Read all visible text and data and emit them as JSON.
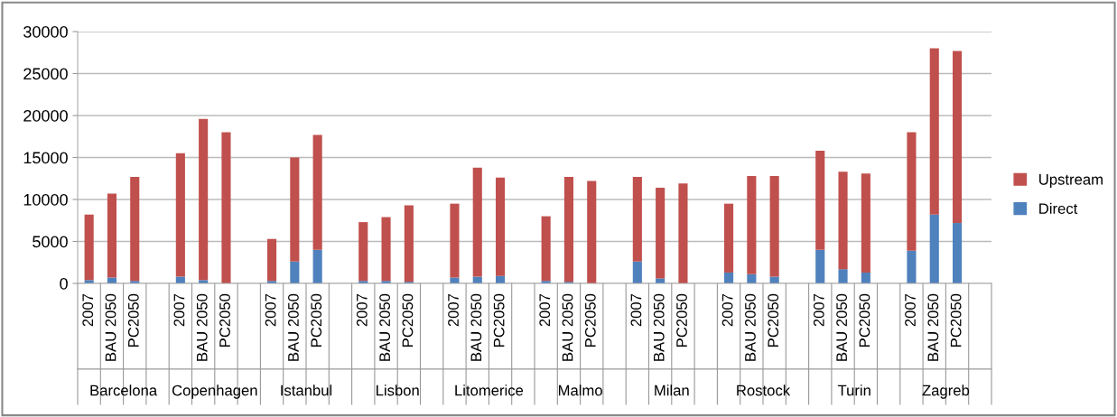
{
  "chart_data": {
    "type": "bar",
    "stacked": true,
    "categories": [
      "2007",
      "BAU 2050",
      "PC2050",
      null,
      "2007",
      "BAU 2050",
      "PC2050",
      null,
      "2007",
      "BAU 2050",
      "PC2050",
      null,
      "2007",
      "BAU 2050",
      "PC2050",
      null,
      "2007",
      "BAU 2050",
      "PC2050",
      null,
      "2007",
      "BAU 2050",
      "PC2050",
      null,
      "2007",
      "BAU 2050",
      "PC2050",
      null,
      "2007",
      "BAU 2050",
      "PC2050",
      null,
      "2007",
      "BAU 2050",
      "PC2050",
      null,
      "2007",
      "BAU 2050",
      "PC2050",
      null
    ],
    "series": [
      {
        "name": "Direct",
        "color": "#4f81bd",
        "values": [
          400,
          700,
          300,
          null,
          800,
          400,
          null,
          null,
          300,
          2600,
          4000,
          null,
          300,
          300,
          200,
          null,
          700,
          800,
          900,
          null,
          300,
          200,
          null,
          null,
          2600,
          600,
          null,
          null,
          1300,
          1100,
          800,
          null,
          4000,
          1700,
          1300,
          null,
          3900,
          8200,
          7200,
          null
        ]
      },
      {
        "name": "Upstream",
        "color": "#c0504d",
        "values": [
          7800,
          10000,
          12400,
          null,
          14700,
          19200,
          18000,
          null,
          5000,
          12400,
          13700,
          null,
          7000,
          7600,
          9100,
          null,
          8800,
          13000,
          11700,
          null,
          7700,
          12500,
          12200,
          null,
          10100,
          10800,
          11900,
          null,
          8200,
          11700,
          12000,
          null,
          11800,
          11600,
          11800,
          null,
          14100,
          19800,
          20500,
          null
        ]
      }
    ],
    "annotations": [
      "Barcelona",
      "Copenhagen",
      "Istanbul",
      "Lisbon",
      "Litomerice",
      "Malmo",
      "Milan",
      "Rostock",
      "Turin",
      "Zagreb"
    ],
    "ylim": [
      0,
      30000
    ],
    "yticks": [
      0,
      5000,
      10000,
      15000,
      20000,
      25000,
      30000
    ],
    "grid": "y",
    "legend": "right"
  }
}
